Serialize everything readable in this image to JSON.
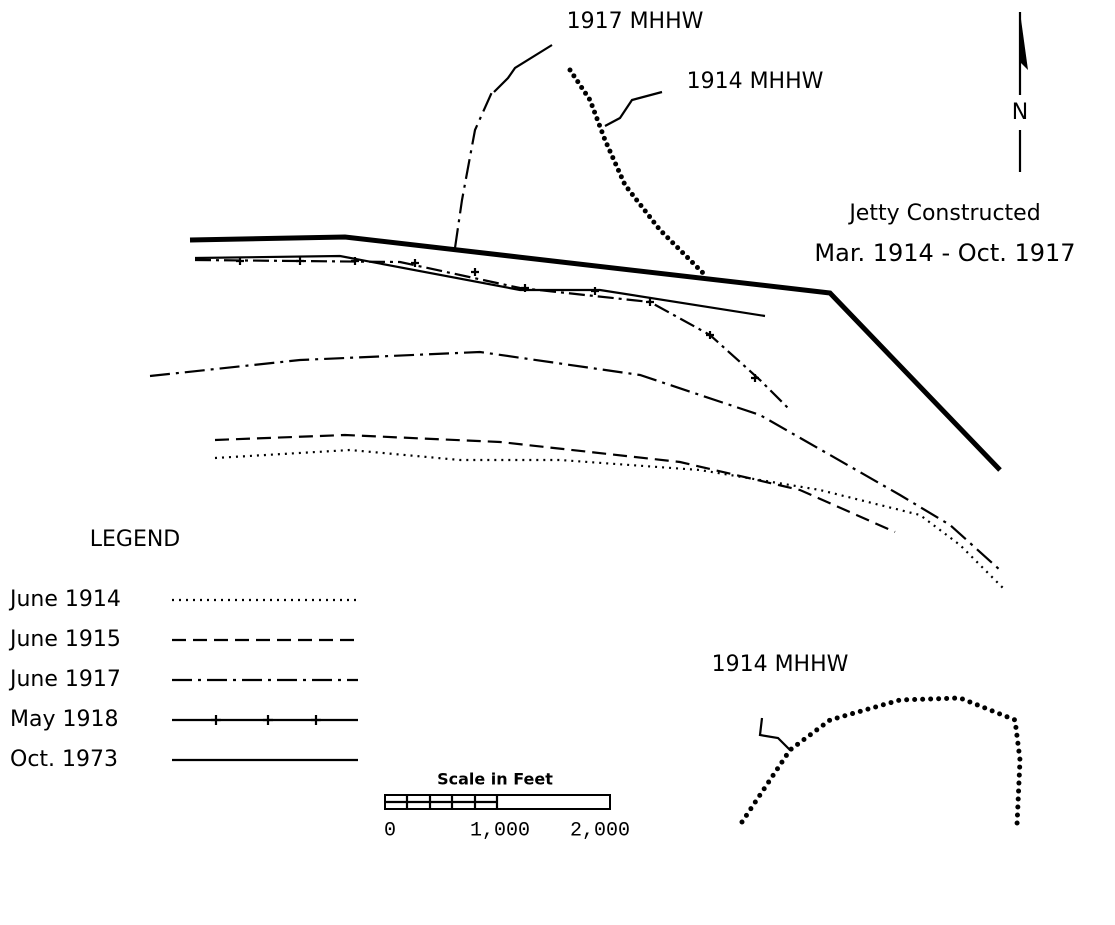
{
  "labels": {
    "mhhw_1917": "1917 MHHW",
    "mhhw_1914_top": "1914 MHHW",
    "mhhw_1914_bottom": "1914 MHHW",
    "north": "N"
  },
  "jetty": {
    "title": "Jetty Constructed",
    "dates": "Mar. 1914 - Oct. 1917"
  },
  "legend": {
    "title": "LEGEND",
    "items": [
      "June 1914",
      "June 1915",
      "June 1917",
      "May 1918",
      "Oct. 1973"
    ]
  },
  "scale": {
    "title": "Scale in Feet",
    "ticks": [
      "0",
      "1,000",
      "2,000"
    ]
  }
}
